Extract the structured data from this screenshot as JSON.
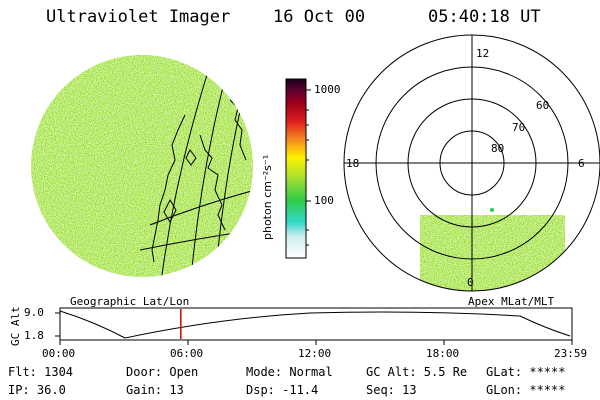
{
  "header": {
    "instrument": "Ultraviolet Imager",
    "date": "16 Oct 00",
    "time": "05:40:18 UT"
  },
  "colorbar": {
    "ticks": [
      "1000",
      "100"
    ],
    "unit_label": "photon cm⁻²s⁻¹"
  },
  "polar_plot": {
    "mlt_labels": {
      "top": "12",
      "left": "18",
      "right": "6",
      "bottom": "0"
    },
    "lat_labels": [
      "60",
      "70",
      "80"
    ]
  },
  "panel_titles": {
    "left": "Geographic Lat/Lon",
    "right": "Apex MLat/MLT"
  },
  "altitude_strip": {
    "axis_label": "GC Alt",
    "y_ticks": [
      "9.0",
      "1.8"
    ],
    "time_ticks": [
      "00:00",
      "06:00",
      "12:00",
      "18:00",
      "23:59"
    ],
    "current_time_fraction": 0.236
  },
  "info": {
    "flt": "Flt: 1304",
    "ip": "IP: 36.0",
    "door": "Door: Open",
    "gain": "Gain: 13",
    "mode": "Mode: Normal",
    "dsp": "Dsp:  -11.4",
    "gc_alt": "GC Alt: 5.5 Re",
    "seq": "Seq: 13",
    "glat": "GLat: *****",
    "glon": "GLon: *****"
  },
  "colors": {
    "image_base": "#b6dc43",
    "colorbar_stops": [
      "#ffffff",
      "#33d8c8",
      "#2dcc49",
      "#fff200",
      "#f58a1f",
      "#c3001b",
      "#26001f"
    ],
    "marker": "#d00000"
  }
}
